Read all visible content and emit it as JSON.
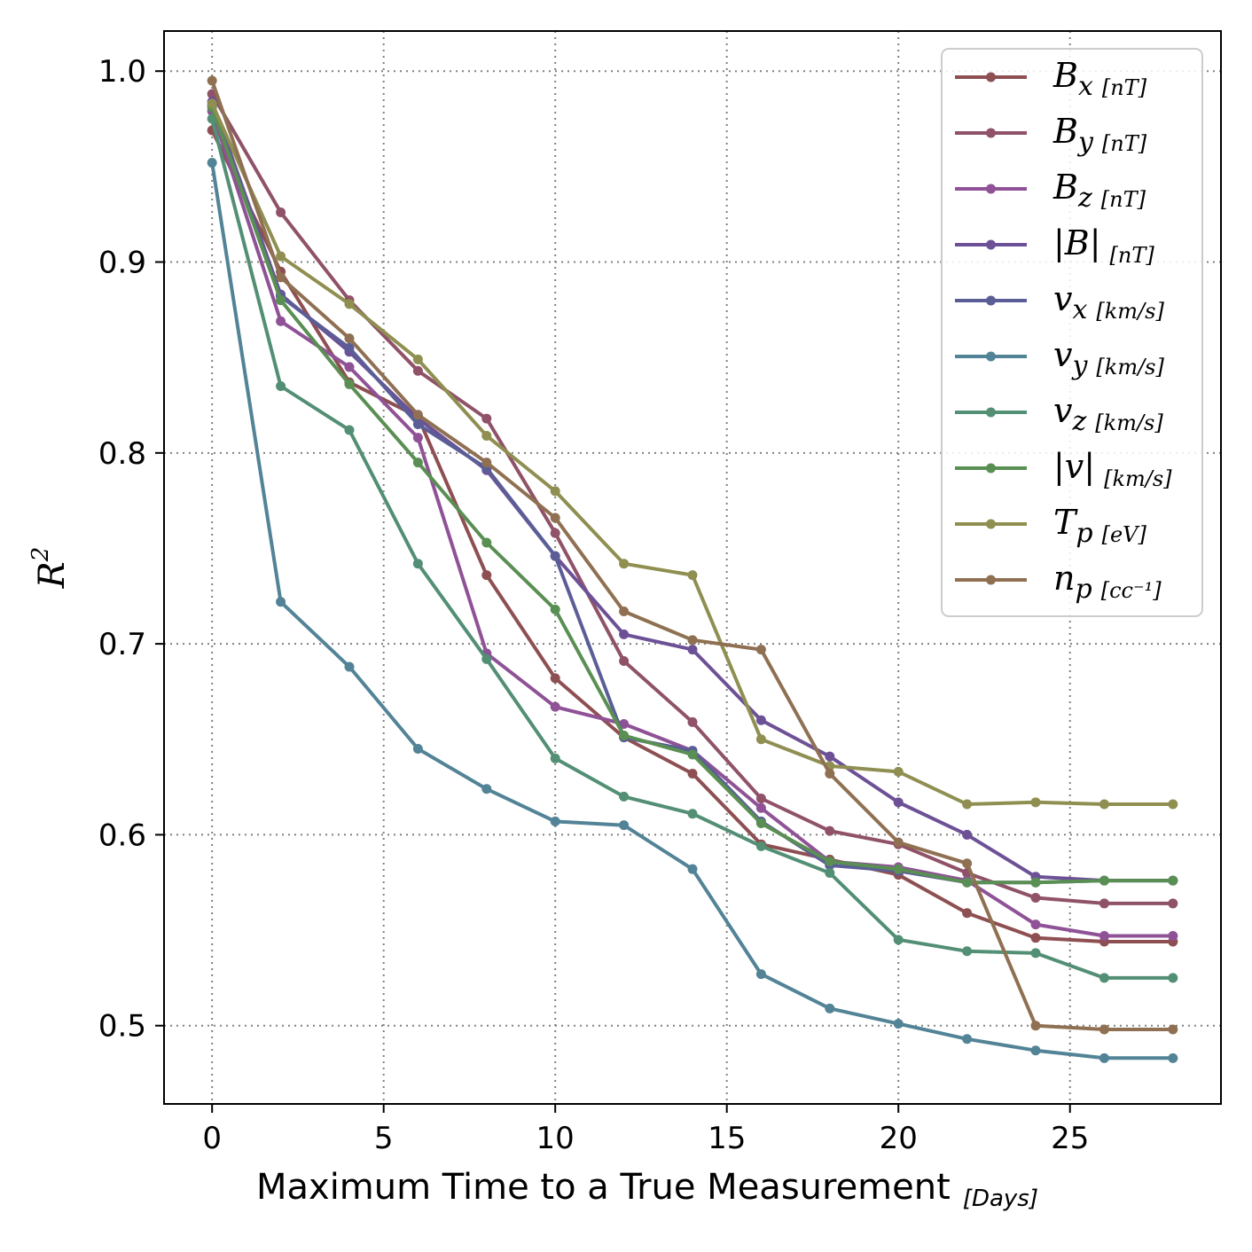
{
  "chart_data": {
    "type": "line",
    "xlabel": "Maximum Time to a True Measurement",
    "xlabel_unit": "[Days]",
    "ylabel": "R",
    "ylabel_sup": "2",
    "xlim": [
      -1.4,
      29.4
    ],
    "ylim": [
      0.459,
      1.021
    ],
    "xticks": [
      0,
      5,
      10,
      15,
      20,
      25
    ],
    "yticks": [
      0.5,
      0.6,
      0.7,
      0.8,
      0.9,
      1.0
    ],
    "xtick_labels": [
      "0",
      "5",
      "10",
      "15",
      "20",
      "25"
    ],
    "ytick_labels": [
      "0.5",
      "0.6",
      "0.7",
      "0.8",
      "0.9",
      "1.0"
    ],
    "grid": true,
    "legend_position": "top-right",
    "x": [
      0,
      2,
      4,
      6,
      8,
      10,
      12,
      14,
      16,
      18,
      20,
      22,
      24,
      26,
      28
    ],
    "series": [
      {
        "name": "B",
        "sub": "x",
        "unit": "[nT]",
        "color": "#8e4f52",
        "values": [
          0.969,
          0.895,
          0.837,
          0.819,
          0.736,
          0.682,
          0.651,
          0.632,
          0.595,
          0.587,
          0.579,
          0.559,
          0.546,
          0.544,
          0.544
        ]
      },
      {
        "name": "B",
        "sub": "y",
        "unit": "[nT]",
        "color": "#8f5269",
        "values": [
          0.988,
          0.926,
          0.88,
          0.843,
          0.818,
          0.758,
          0.691,
          0.659,
          0.619,
          0.602,
          0.595,
          0.58,
          0.567,
          0.564,
          0.564
        ]
      },
      {
        "name": "B",
        "sub": "z",
        "unit": "[nT]",
        "color": "#8f5296",
        "values": [
          0.979,
          0.869,
          0.845,
          0.808,
          0.695,
          0.667,
          0.658,
          0.644,
          0.614,
          0.586,
          0.583,
          0.576,
          0.553,
          0.547,
          0.547
        ]
      },
      {
        "name": "|B|",
        "sub": "",
        "unit": "[nT]",
        "color": "#6d5196",
        "values": [
          0.984,
          0.883,
          0.853,
          0.818,
          0.791,
          0.746,
          0.705,
          0.697,
          0.66,
          0.641,
          0.617,
          0.6,
          0.578,
          0.576,
          0.576
        ]
      },
      {
        "name": "v",
        "sub": "x",
        "unit": "[km/s]",
        "color": "#5b5e96",
        "values": [
          0.982,
          0.882,
          0.855,
          0.815,
          0.792,
          0.746,
          0.651,
          0.644,
          0.607,
          0.584,
          0.581,
          0.575,
          0.575,
          0.576,
          0.576
        ]
      },
      {
        "name": "v",
        "sub": "y",
        "unit": "[km/s]",
        "color": "#528396",
        "values": [
          0.952,
          0.722,
          0.688,
          0.645,
          0.624,
          0.607,
          0.605,
          0.582,
          0.527,
          0.509,
          0.501,
          0.493,
          0.487,
          0.483,
          0.483
        ]
      },
      {
        "name": "v",
        "sub": "z",
        "unit": "[km/s]",
        "color": "#528f74",
        "values": [
          0.975,
          0.835,
          0.812,
          0.742,
          0.692,
          0.64,
          0.62,
          0.611,
          0.594,
          0.58,
          0.545,
          0.539,
          0.538,
          0.525,
          0.525
        ]
      },
      {
        "name": "|v|",
        "sub": "",
        "unit": "[km/s]",
        "color": "#5a8f53",
        "values": [
          0.981,
          0.88,
          0.836,
          0.795,
          0.753,
          0.718,
          0.652,
          0.642,
          0.606,
          0.586,
          0.582,
          0.575,
          0.575,
          0.576,
          0.576
        ]
      },
      {
        "name": "T",
        "sub": "p",
        "unit": "[eV]",
        "color": "#8f8f52",
        "values": [
          0.983,
          0.903,
          0.878,
          0.849,
          0.809,
          0.78,
          0.742,
          0.736,
          0.65,
          0.636,
          0.633,
          0.616,
          0.617,
          0.616,
          0.616
        ]
      },
      {
        "name": "n",
        "sub": "p",
        "unit": "[cc⁻¹]",
        "color": "#8f7052",
        "values": [
          0.995,
          0.892,
          0.86,
          0.82,
          0.795,
          0.766,
          0.717,
          0.702,
          0.697,
          0.632,
          0.596,
          0.585,
          0.5,
          0.498,
          0.498
        ]
      }
    ]
  }
}
